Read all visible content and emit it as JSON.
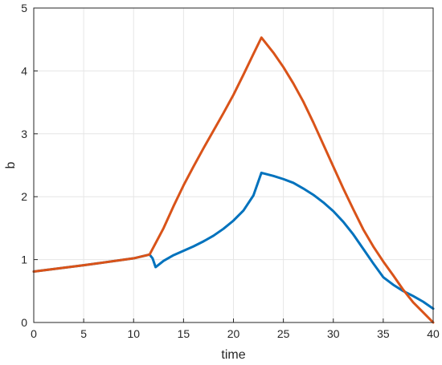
{
  "chart_data": {
    "type": "line",
    "title": "",
    "xlabel": "time",
    "ylabel": "b",
    "xlim": [
      0,
      40
    ],
    "ylim": [
      0,
      5
    ],
    "xticks": [
      0,
      5,
      10,
      15,
      20,
      25,
      30,
      35,
      40
    ],
    "yticks": [
      0,
      1,
      2,
      3,
      4,
      5
    ],
    "grid": true,
    "legend": "none",
    "series": [
      {
        "color": "#0072BD",
        "x": [
          0,
          5,
          10,
          11.6,
          11.9,
          12.2,
          13,
          14,
          15,
          16,
          17,
          18,
          19,
          20,
          21,
          22,
          22.8,
          24,
          25,
          26,
          27,
          28,
          29,
          30,
          31,
          32,
          33,
          34,
          35,
          36,
          37,
          38,
          39,
          40
        ],
        "y": [
          0.81,
          0.91,
          1.02,
          1.08,
          1.02,
          0.88,
          0.98,
          1.07,
          1.14,
          1.21,
          1.29,
          1.38,
          1.49,
          1.62,
          1.78,
          2.02,
          2.38,
          2.33,
          2.28,
          2.22,
          2.13,
          2.03,
          1.91,
          1.77,
          1.6,
          1.4,
          1.17,
          0.94,
          0.72,
          0.6,
          0.5,
          0.42,
          0.33,
          0.22
        ]
      },
      {
        "color": "#D95319",
        "x": [
          0,
          5,
          10,
          11.6,
          13,
          14,
          15,
          16,
          17,
          18,
          19,
          20,
          21,
          22,
          22.8,
          24,
          25,
          26,
          27,
          28,
          29,
          30,
          31,
          32,
          33,
          34,
          35,
          36,
          37,
          38,
          39,
          40
        ],
        "y": [
          0.81,
          0.91,
          1.02,
          1.08,
          1.5,
          1.85,
          2.18,
          2.48,
          2.77,
          3.05,
          3.33,
          3.62,
          3.94,
          4.27,
          4.53,
          4.29,
          4.06,
          3.8,
          3.51,
          3.18,
          2.83,
          2.48,
          2.13,
          1.8,
          1.48,
          1.21,
          0.97,
          0.75,
          0.52,
          0.32,
          0.16,
          0.0
        ]
      }
    ]
  }
}
